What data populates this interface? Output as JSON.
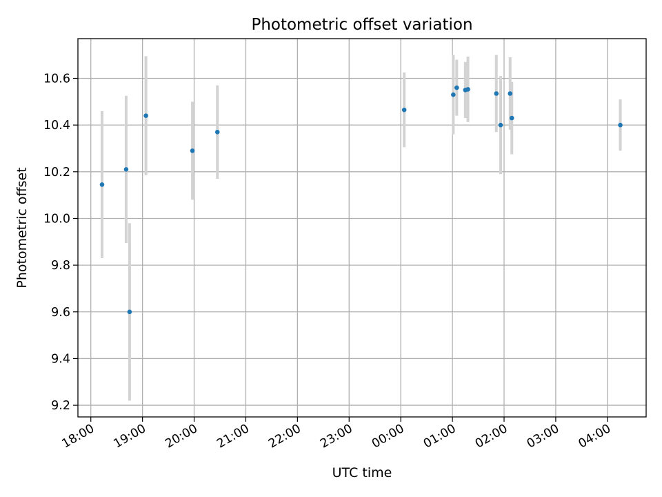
{
  "chart_data": {
    "type": "scatter",
    "title": "Photometric offset variation",
    "xlabel": "UTC time",
    "ylabel": "Photometric offset",
    "x_unit": "UTC hour of night (hours after 18:00 are shown past midnight)",
    "xlim": [
      "17:45",
      "04:45"
    ],
    "ylim": [
      9.15,
      10.77
    ],
    "grid": true,
    "colors": {
      "point": "#1f77b4",
      "errorbar": "#d3d3d3"
    },
    "x_ticks": [
      "18:00",
      "19:00",
      "20:00",
      "21:00",
      "22:00",
      "23:00",
      "00:00",
      "01:00",
      "02:00",
      "03:00",
      "04:00"
    ],
    "y_ticks": [
      "9.2",
      "9.4",
      "9.6",
      "9.8",
      "10.0",
      "10.2",
      "10.4",
      "10.6"
    ],
    "points": [
      {
        "x": "18:13",
        "y": 10.145,
        "err": 0.315
      },
      {
        "x": "18:41",
        "y": 10.21,
        "err": 0.315
      },
      {
        "x": "18:45",
        "y": 9.6,
        "err": 0.38
      },
      {
        "x": "19:04",
        "y": 10.44,
        "err": 0.255
      },
      {
        "x": "19:58",
        "y": 10.29,
        "err": 0.21
      },
      {
        "x": "20:27",
        "y": 10.37,
        "err": 0.2
      },
      {
        "x": "00:04",
        "y": 10.465,
        "err": 0.16
      },
      {
        "x": "01:01",
        "y": 10.53,
        "err": 0.17
      },
      {
        "x": "01:05",
        "y": 10.56,
        "err": 0.12
      },
      {
        "x": "01:15",
        "y": 10.55,
        "err": 0.12
      },
      {
        "x": "01:18",
        "y": 10.553,
        "err": 0.14
      },
      {
        "x": "01:51",
        "y": 10.535,
        "err": 0.165
      },
      {
        "x": "01:56",
        "y": 10.4,
        "err": 0.21
      },
      {
        "x": "02:07",
        "y": 10.535,
        "err": 0.155
      },
      {
        "x": "02:09",
        "y": 10.43,
        "err": 0.155
      },
      {
        "x": "04:15",
        "y": 10.4,
        "err": 0.11
      }
    ]
  }
}
